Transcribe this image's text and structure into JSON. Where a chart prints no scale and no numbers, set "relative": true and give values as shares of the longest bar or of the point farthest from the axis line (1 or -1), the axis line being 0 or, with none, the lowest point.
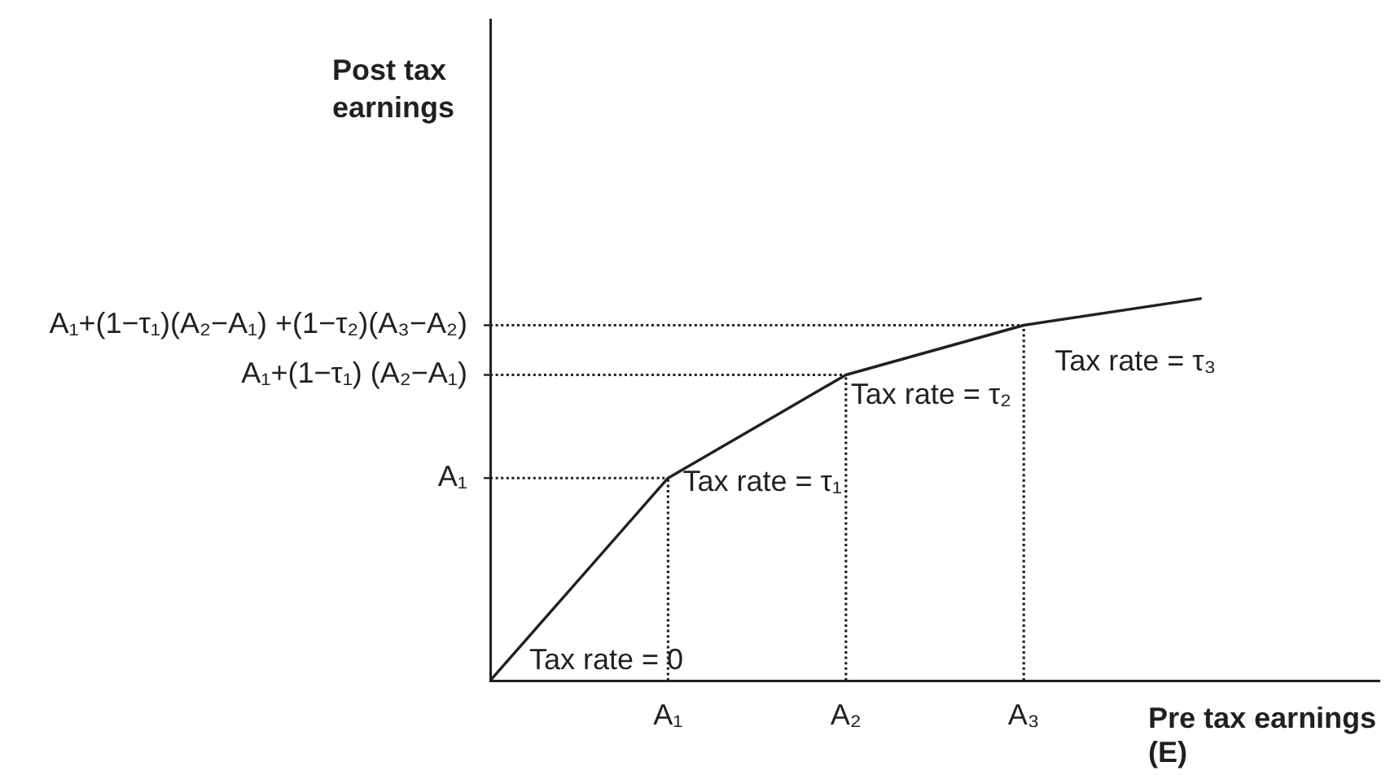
{
  "chart_data": {
    "type": "line",
    "xlabel": "Pre tax earnings (E)",
    "relative": true,
    "categories": [
      null,
      "A₁",
      "A₂",
      "A₃",
      null
    ],
    "series": [
      {
        "color": "#231f20",
        "values": [
          0,
          0.53,
          0.8,
          0.93,
          1
        ]
      },
      {
        "color": "#231f20",
        "line_style": "dotted",
        "values": [
          0.53,
          0.53,
          null,
          null,
          null
        ]
      },
      {
        "color": "#231f20",
        "line_style": "dotted",
        "values": [
          0.8,
          0.8,
          0.8,
          null,
          null
        ]
      },
      {
        "color": "#231f20",
        "line_style": "dotted",
        "values": [
          0.93,
          0.93,
          0.93,
          0.93,
          null
        ]
      },
      {
        "color": "#231f20",
        "line_style": "dotted",
        "x": [
          "A₁",
          "A₁"
        ],
        "values": [
          0,
          0.53
        ]
      },
      {
        "color": "#231f20",
        "line_style": "dotted",
        "x": [
          "A₂",
          "A₂"
        ],
        "values": [
          0,
          0.8
        ]
      },
      {
        "color": "#231f20",
        "line_style": "dotted",
        "x": [
          "A₃",
          "A₃"
        ],
        "values": [
          0,
          0.93
        ]
      }
    ],
    "annotations": [
      "Tax rate = 0",
      "Tax rate = τ₁",
      "Tax rate = τ₂",
      "Tax rate = τ₃",
      "A₁",
      "A₁+(1−τ₁) (A₂−A₁)",
      "A₁+(1−τ₁)(A₂−A₁) +(1−τ₂)(A₃−A₂)",
      "Post tax earnings"
    ],
    "line_style": "solid",
    "marker": "none",
    "grid": false,
    "legend": false
  }
}
